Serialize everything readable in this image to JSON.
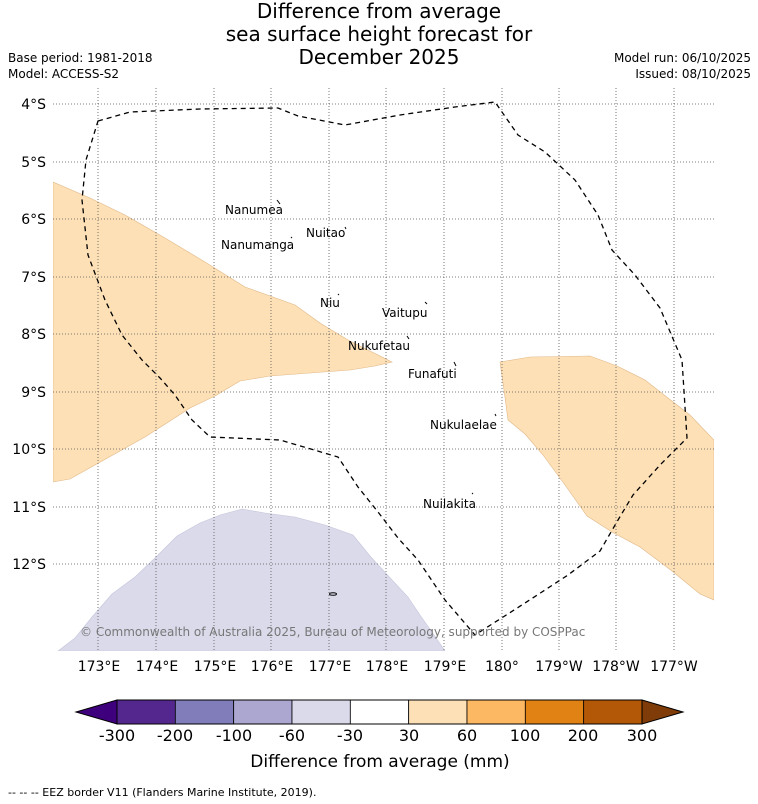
{
  "title_lines": [
    "Difference from average",
    "sea surface height forecast for",
    "December 2025"
  ],
  "meta_left": [
    "Base period: 1981-2018",
    "Model: ACCESS-S2"
  ],
  "meta_right": [
    "Model run: 06/10/2025",
    "Issued: 08/10/2025"
  ],
  "lat_labels": [
    "4°S",
    "5°S",
    "6°S",
    "7°S",
    "8°S",
    "9°S",
    "10°S",
    "11°S",
    "12°S"
  ],
  "lon_labels": [
    "173°E",
    "174°E",
    "175°E",
    "176°E",
    "177°E",
    "178°E",
    "179°E",
    "180°",
    "179°W",
    "178°W",
    "177°W"
  ],
  "islands": [
    "Nanumea",
    "Nuitao",
    "Nanumanga",
    "Niu",
    "Vaitupu",
    "Nukufetau",
    "Funafuti",
    "Nukulaelae",
    "Nuilakita"
  ],
  "copyright": "© Commonwealth of Australia 2025, Bureau of Meteorology, supported by COSPPac",
  "colorbar": {
    "title": "Difference from average (mm)",
    "ticks": [
      "-300",
      "-200",
      "-100",
      "-60",
      "-30",
      "30",
      "60",
      "100",
      "200",
      "300"
    ],
    "colors": [
      "#3f007d",
      "#54278f",
      "#807dba",
      "#aba7d0",
      "#dadaeb",
      "#ffffff",
      "#fee0b6",
      "#fdb863",
      "#e08214",
      "#b35806",
      "#7f3b08"
    ]
  },
  "footer": "-- -- -- EEZ border V11 (Flanders Marine Institute, 2019).",
  "colors": {
    "positive_anomaly": "#fee0b6",
    "negative_anomaly": "#dadaeb",
    "grid": "#555555"
  }
}
